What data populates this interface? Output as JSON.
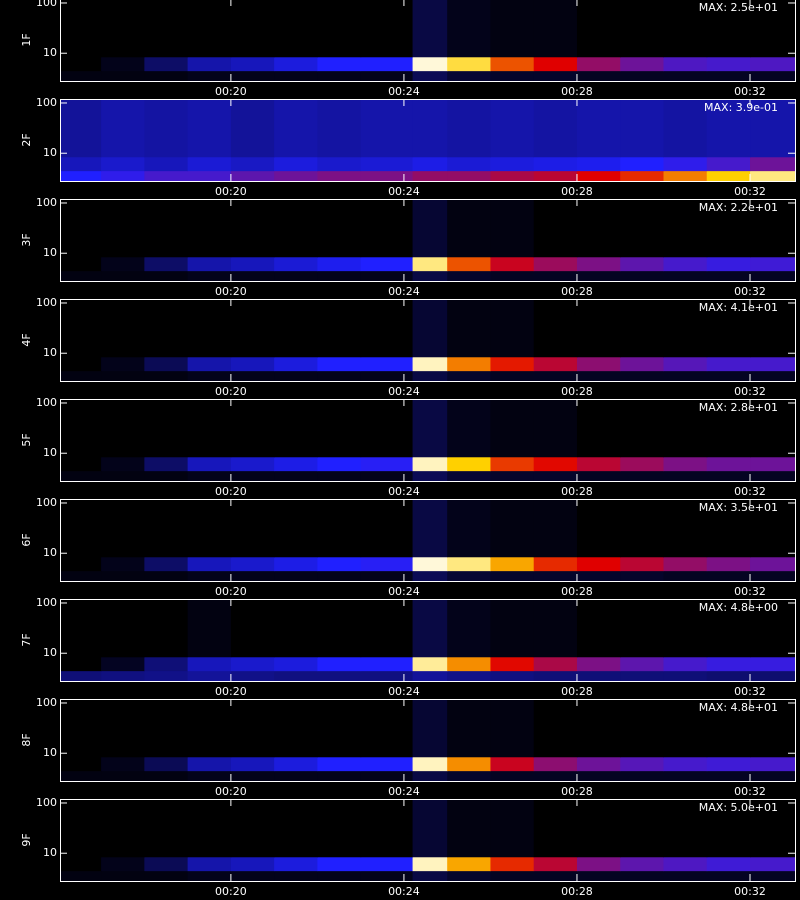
{
  "chart_data": {
    "type": "spectrogram",
    "xlim": [
      16.05,
      33.04
    ],
    "xticks": [
      {
        "value": 20,
        "label": "00:20"
      },
      {
        "value": 24,
        "label": "00:24"
      },
      {
        "value": 28,
        "label": "00:28"
      },
      {
        "value": 32,
        "label": "00:32"
      }
    ],
    "ylim": [
      2.8,
      120
    ],
    "yticks": [
      10,
      100
    ],
    "log_y": true,
    "time_edges": [
      16,
      17,
      18,
      19,
      20,
      21,
      22,
      23,
      24.2,
      25,
      26,
      27,
      28,
      29,
      30,
      31,
      32,
      33.1
    ],
    "energy_edges": [
      2.8,
      4.5,
      8.5,
      120
    ],
    "colormap": {
      "values": [
        0,
        0.3,
        0.55,
        0.8,
        1
      ],
      "colors": [
        "#000000",
        "#2020ff",
        "#e00000",
        "#ffd000",
        "#ffffff"
      ]
    },
    "panels": [
      {
        "name": "1F",
        "max_label": "MAX: 2.5e+01",
        "z": [
          [
            0.02,
            0.02,
            0.02,
            0.03,
            0.03,
            0.03,
            0.03,
            0.03,
            0.1,
            0.06,
            0.05,
            0.05,
            0.04,
            0.04,
            0.04,
            0.04,
            0.04
          ],
          [
            0,
            0.03,
            0.12,
            0.2,
            0.22,
            0.26,
            0.3,
            0.3,
            0.97,
            0.85,
            0.65,
            0.55,
            0.45,
            0.4,
            0.36,
            0.35,
            0.36
          ],
          [
            0,
            0,
            0,
            0,
            0,
            0,
            0,
            0,
            0.08,
            0.03,
            0.02,
            0.02,
            0,
            0,
            0,
            0,
            0
          ]
        ]
      },
      {
        "name": "2F",
        "max_label": "MAX: 3.9e-01",
        "z": [
          [
            0.3,
            0.32,
            0.35,
            0.35,
            0.38,
            0.4,
            0.42,
            0.42,
            0.45,
            0.45,
            0.48,
            0.5,
            0.55,
            0.6,
            0.7,
            0.8,
            0.9
          ],
          [
            0.22,
            0.24,
            0.22,
            0.25,
            0.23,
            0.26,
            0.24,
            0.25,
            0.27,
            0.25,
            0.26,
            0.27,
            0.28,
            0.3,
            0.32,
            0.35,
            0.4
          ],
          [
            0.18,
            0.2,
            0.19,
            0.2,
            0.18,
            0.2,
            0.19,
            0.2,
            0.2,
            0.19,
            0.2,
            0.19,
            0.2,
            0.2,
            0.19,
            0.2,
            0.2
          ]
        ]
      },
      {
        "name": "3F",
        "max_label": "MAX: 2.2e+01",
        "z": [
          [
            0.02,
            0.02,
            0.02,
            0.03,
            0.03,
            0.03,
            0.03,
            0.03,
            0.08,
            0.05,
            0.04,
            0.04,
            0.04,
            0.04,
            0.04,
            0.04,
            0.04
          ],
          [
            0,
            0.03,
            0.12,
            0.2,
            0.22,
            0.25,
            0.28,
            0.3,
            0.9,
            0.65,
            0.52,
            0.46,
            0.42,
            0.38,
            0.35,
            0.33,
            0.34
          ],
          [
            0,
            0,
            0,
            0,
            0,
            0,
            0,
            0,
            0.06,
            0.02,
            0.02,
            0,
            0,
            0,
            0,
            0,
            0
          ]
        ]
      },
      {
        "name": "4F",
        "max_label": "MAX: 4.1e+01",
        "z": [
          [
            0.02,
            0.02,
            0.02,
            0.03,
            0.03,
            0.03,
            0.03,
            0.03,
            0.08,
            0.05,
            0.04,
            0.04,
            0.04,
            0.04,
            0.04,
            0.04,
            0.04
          ],
          [
            0,
            0.03,
            0.1,
            0.2,
            0.22,
            0.26,
            0.3,
            0.3,
            0.95,
            0.7,
            0.58,
            0.5,
            0.44,
            0.4,
            0.37,
            0.35,
            0.35
          ],
          [
            0,
            0,
            0,
            0,
            0,
            0,
            0,
            0,
            0.06,
            0.02,
            0.02,
            0,
            0,
            0,
            0,
            0,
            0
          ]
        ]
      },
      {
        "name": "5F",
        "max_label": "MAX: 2.8e+01",
        "z": [
          [
            0.02,
            0.02,
            0.02,
            0.03,
            0.03,
            0.03,
            0.03,
            0.03,
            0.1,
            0.06,
            0.05,
            0.05,
            0.04,
            0.04,
            0.04,
            0.04,
            0.04
          ],
          [
            0,
            0.03,
            0.12,
            0.22,
            0.24,
            0.27,
            0.3,
            0.31,
            0.95,
            0.8,
            0.62,
            0.56,
            0.5,
            0.46,
            0.42,
            0.4,
            0.4
          ],
          [
            0,
            0,
            0,
            0,
            0,
            0,
            0,
            0,
            0.08,
            0.03,
            0.02,
            0.02,
            0,
            0,
            0,
            0,
            0
          ]
        ]
      },
      {
        "name": "6F",
        "max_label": "MAX: 3.5e+01",
        "z": [
          [
            0.02,
            0.02,
            0.02,
            0.03,
            0.03,
            0.03,
            0.03,
            0.03,
            0.1,
            0.06,
            0.05,
            0.05,
            0.05,
            0.05,
            0.04,
            0.04,
            0.04
          ],
          [
            0,
            0.03,
            0.12,
            0.22,
            0.24,
            0.27,
            0.3,
            0.31,
            0.97,
            0.9,
            0.75,
            0.6,
            0.55,
            0.5,
            0.45,
            0.42,
            0.4
          ],
          [
            0,
            0,
            0,
            0,
            0,
            0,
            0,
            0,
            0.08,
            0.03,
            0.02,
            0.02,
            0,
            0,
            0,
            0,
            0
          ]
        ]
      },
      {
        "name": "7F",
        "max_label": "MAX: 4.8e+00",
        "z": [
          [
            0.14,
            0.15,
            0.16,
            0.18,
            0.16,
            0.15,
            0.15,
            0.15,
            0.18,
            0.16,
            0.15,
            0.14,
            0.14,
            0.14,
            0.14,
            0.13,
            0.13
          ],
          [
            0,
            0.04,
            0.14,
            0.22,
            0.24,
            0.26,
            0.3,
            0.3,
            0.92,
            0.72,
            0.56,
            0.48,
            0.42,
            0.38,
            0.35,
            0.33,
            0.33
          ],
          [
            0,
            0,
            0,
            0.02,
            0,
            0,
            0,
            0,
            0.08,
            0.03,
            0.02,
            0.02,
            0,
            0,
            0,
            0,
            0
          ]
        ]
      },
      {
        "name": "8F",
        "max_label": "MAX: 4.8e+01",
        "z": [
          [
            0.02,
            0.02,
            0.02,
            0.03,
            0.03,
            0.03,
            0.03,
            0.03,
            0.08,
            0.05,
            0.04,
            0.04,
            0.04,
            0.04,
            0.04,
            0.04,
            0.04
          ],
          [
            0,
            0.03,
            0.1,
            0.2,
            0.22,
            0.26,
            0.3,
            0.3,
            0.95,
            0.72,
            0.52,
            0.44,
            0.4,
            0.37,
            0.35,
            0.34,
            0.35
          ],
          [
            0,
            0,
            0,
            0,
            0,
            0,
            0,
            0,
            0.06,
            0.02,
            0.02,
            0,
            0,
            0,
            0,
            0,
            0
          ]
        ]
      },
      {
        "name": "9F",
        "max_label": "MAX: 5.0e+01",
        "z": [
          [
            0.02,
            0.02,
            0.02,
            0.03,
            0.03,
            0.03,
            0.03,
            0.03,
            0.08,
            0.05,
            0.04,
            0.04,
            0.04,
            0.04,
            0.04,
            0.04,
            0.04
          ],
          [
            0,
            0.03,
            0.1,
            0.2,
            0.22,
            0.26,
            0.3,
            0.3,
            0.95,
            0.75,
            0.6,
            0.5,
            0.42,
            0.38,
            0.36,
            0.34,
            0.35
          ],
          [
            0,
            0,
            0,
            0,
            0,
            0,
            0,
            0,
            0.06,
            0.02,
            0.02,
            0,
            0,
            0,
            0,
            0,
            0
          ]
        ]
      }
    ]
  }
}
